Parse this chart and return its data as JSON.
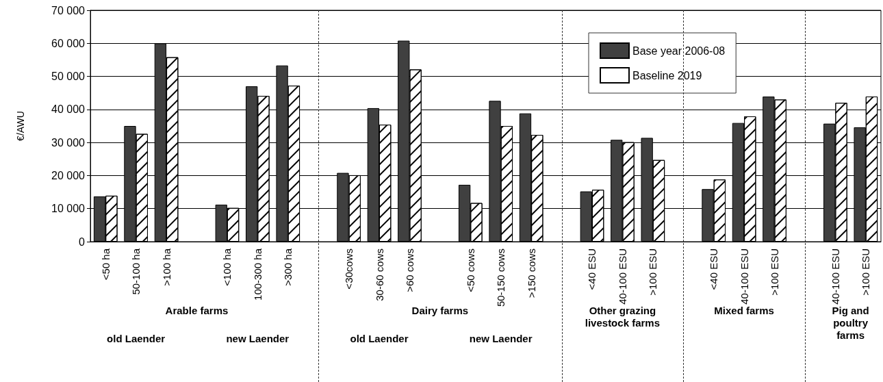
{
  "chart_data": {
    "type": "bar",
    "ylabel": "€/AWU",
    "categories": [
      "<50 ha",
      "50-100 ha",
      ">100 ha",
      null,
      "<100 ha",
      "100-300 ha",
      ">300 ha",
      null,
      "<30cows",
      "30-60 cows",
      ">60 cows",
      null,
      "<50 cows",
      "50-150 cows",
      ">150 cows",
      null,
      "<40 ESU",
      "40-100 ESU",
      ">100 ESU",
      null,
      "<40 ESU",
      "40-100 ESU",
      ">100 ESU",
      null,
      "40-100 ESU",
      ">100 ESU"
    ],
    "series": [
      {
        "name": "Base year 2006-08",
        "color": "#404040",
        "values": [
          13700,
          35000,
          60000,
          null,
          11200,
          47000,
          53300,
          null,
          20800,
          40400,
          60800,
          null,
          17200,
          42600,
          38800,
          null,
          15200,
          30800,
          31400,
          null,
          15900,
          35900,
          43900,
          null,
          35700,
          34600
        ]
      },
      {
        "name": "Baseline 2019",
        "color": "#ffffff",
        "values": [
          13900,
          32600,
          55800,
          null,
          10200,
          44100,
          47200,
          null,
          20100,
          35400,
          52100,
          null,
          11700,
          35000,
          32300,
          null,
          15700,
          30100,
          24700,
          null,
          18800,
          37900,
          43000,
          null,
          42000,
          43900
        ]
      }
    ],
    "ylim": [
      0,
      70000
    ],
    "yticks": [
      0,
      {
        "value": 10000,
        "label": "10 000"
      },
      {
        "value": 20000,
        "label": "20 000"
      },
      {
        "value": 30000,
        "label": "30 000"
      },
      {
        "value": 40000,
        "label": "40 000"
      },
      {
        "value": 50000,
        "label": "50 000"
      },
      {
        "value": 60000,
        "label": "60 000"
      },
      {
        "value": 70000,
        "label": "70 000"
      }
    ],
    "grid": true,
    "legend": "top right",
    "annotations": [
      "Arable farms",
      "old Laender",
      "new Laender",
      "Dairy farms",
      "old Laender",
      "new Laender",
      "Other grazing livestock farms",
      "Mixed farms",
      "Pig and poultry farms"
    ]
  }
}
